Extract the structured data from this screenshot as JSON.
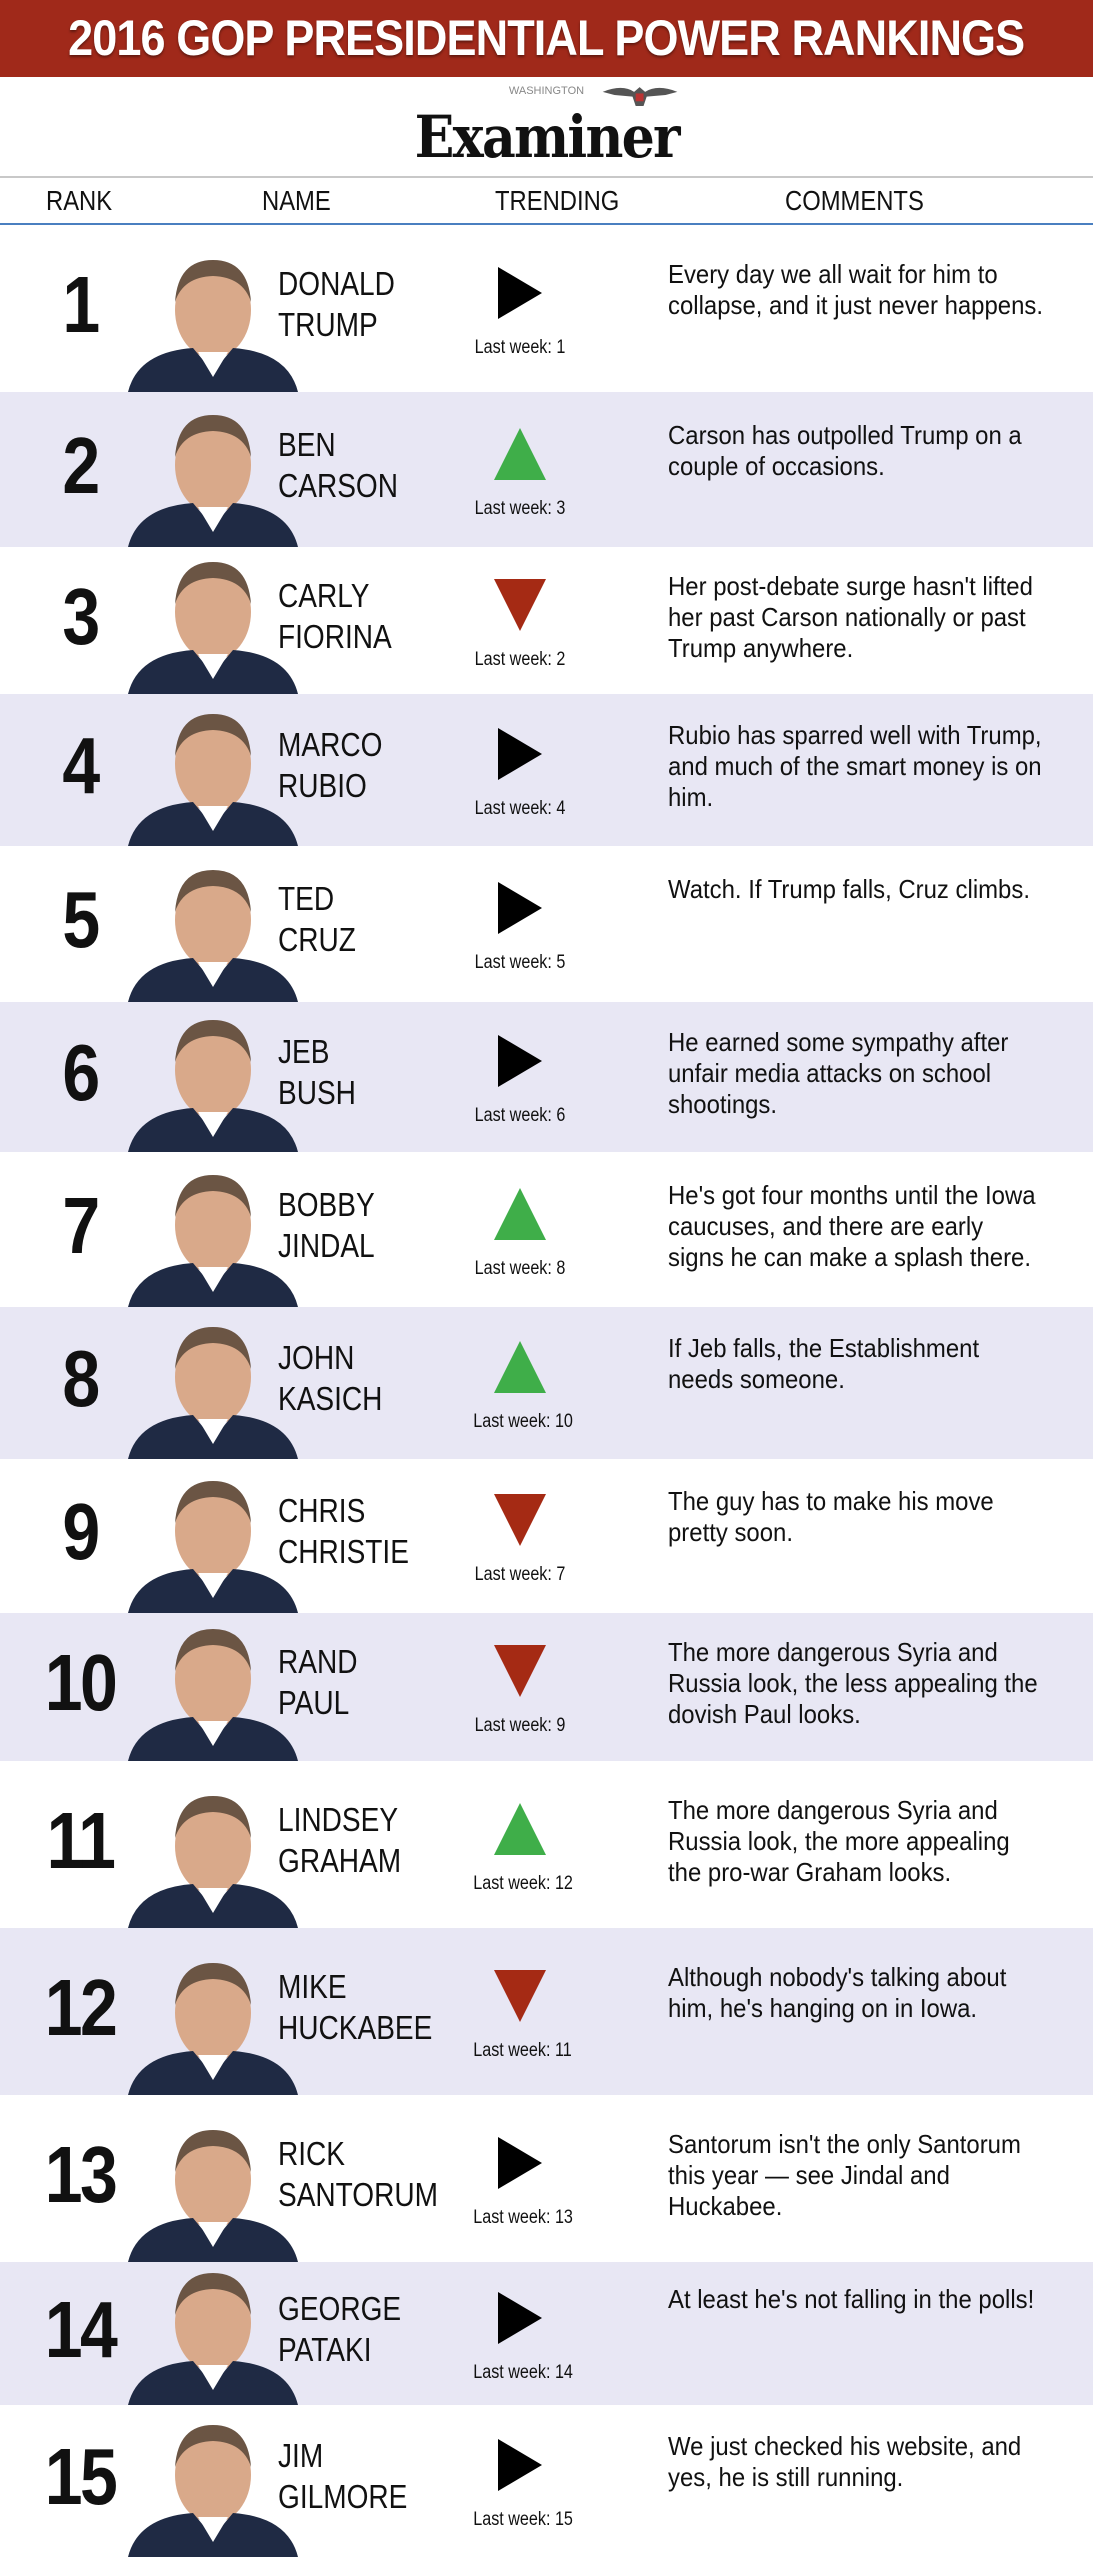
{
  "title": "2016 GOP PRESIDENTIAL POWER RANKINGS",
  "logo": {
    "small": "WASHINGTON",
    "big": "Examiner"
  },
  "columns": {
    "rank": "RANK",
    "name": "NAME",
    "trending": "TRENDING",
    "comments": "COMMENTS"
  },
  "colors": {
    "header": "#a0291a",
    "up": "#3fae49",
    "down": "#a52a14",
    "flat": "#000000",
    "alt_row": "#e8e7f4"
  },
  "rows": [
    {
      "rank": "1",
      "first": "DONALD",
      "last": "TRUMP",
      "trend": "flat",
      "last_week": "Last week: 1",
      "comment": "Every day we all wait for him to collapse, and it just never happens."
    },
    {
      "rank": "2",
      "first": "BEN",
      "last": "CARSON",
      "trend": "up",
      "last_week": "Last week: 3",
      "comment": "Carson has outpolled Trump on a couple of occasions."
    },
    {
      "rank": "3",
      "first": "CARLY",
      "last": "FIORINA",
      "trend": "down",
      "last_week": "Last week: 2",
      "comment": "Her post-debate surge hasn't lifted her past Carson nationally or past Trump anywhere."
    },
    {
      "rank": "4",
      "first": "MARCO",
      "last": "RUBIO",
      "trend": "flat",
      "last_week": "Last week: 4",
      "comment": "Rubio has sparred well with Trump, and much of the smart money is on him."
    },
    {
      "rank": "5",
      "first": "TED",
      "last": "CRUZ",
      "trend": "flat",
      "last_week": "Last week: 5",
      "comment": "Watch. If Trump falls, Cruz climbs."
    },
    {
      "rank": "6",
      "first": "JEB",
      "last": "BUSH",
      "trend": "flat",
      "last_week": "Last week: 6",
      "comment": "He earned some sympathy after unfair media attacks on school shootings."
    },
    {
      "rank": "7",
      "first": "BOBBY",
      "last": "JINDAL",
      "trend": "up",
      "last_week": "Last week: 8",
      "comment": "He's got four months until the Iowa caucuses, and there are early signs he can make a splash there."
    },
    {
      "rank": "8",
      "first": "JOHN",
      "last": "KASICH",
      "trend": "up",
      "last_week": "Last week: 10",
      "comment": "If Jeb falls, the Establishment needs someone."
    },
    {
      "rank": "9",
      "first": "CHRIS",
      "last": "CHRISTIE",
      "trend": "down",
      "last_week": "Last week: 7",
      "comment": "The guy has to make his move pretty soon."
    },
    {
      "rank": "10",
      "first": "RAND",
      "last": "PAUL",
      "trend": "down",
      "last_week": "Last week: 9",
      "comment": "The more dangerous Syria and Russia look, the less appealing the dovish Paul looks."
    },
    {
      "rank": "11",
      "first": "LINDSEY",
      "last": "GRAHAM",
      "trend": "up",
      "last_week": "Last week: 12",
      "comment": "The more dangerous Syria and Russia look, the more appealing the pro-war Graham looks."
    },
    {
      "rank": "12",
      "first": "MIKE",
      "last": "HUCKABEE",
      "trend": "down",
      "last_week": "Last week: 11",
      "comment": "Although nobody's talking about him, he's hanging on in Iowa."
    },
    {
      "rank": "13",
      "first": "RICK",
      "last": "SANTORUM",
      "trend": "flat",
      "last_week": "Last week: 13",
      "comment": "Santorum isn't the only Santorum this year — see Jindal and Huckabee."
    },
    {
      "rank": "14",
      "first": "GEORGE",
      "last": "PATAKI",
      "trend": "flat",
      "last_week": "Last week: 14",
      "comment": "At least he's not falling in the polls!"
    },
    {
      "rank": "15",
      "first": "JIM",
      "last": "GILMORE",
      "trend": "flat",
      "last_week": "Last week: 15",
      "comment": "We just checked his website, and yes, he is still running."
    }
  ]
}
